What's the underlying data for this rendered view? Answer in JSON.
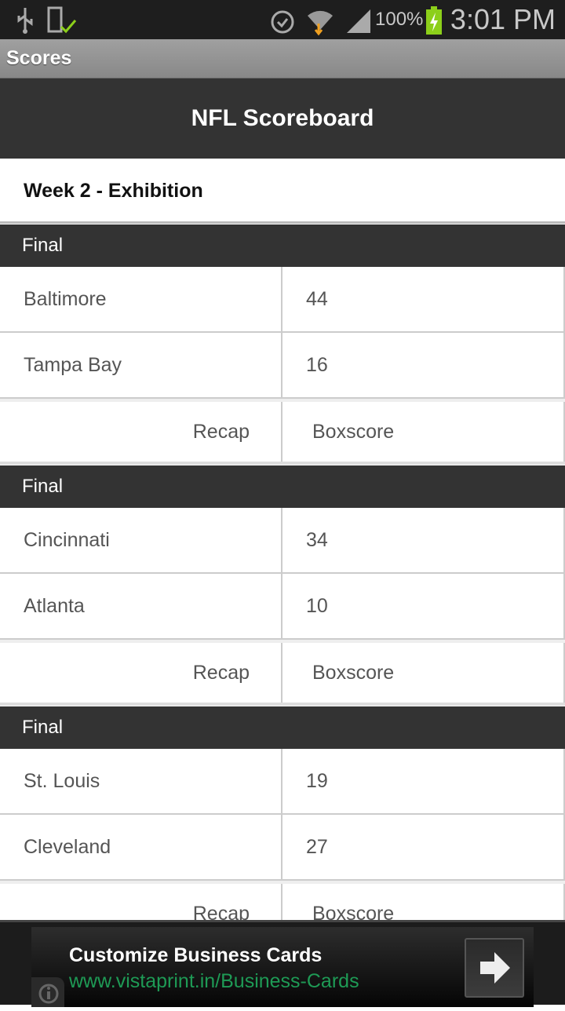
{
  "status_bar": {
    "battery": "100%",
    "time": "3:01 PM",
    "icons": [
      "usb-icon",
      "device-check-icon",
      "alarm-icon",
      "wifi-icon",
      "signal-icon",
      "battery-charging-icon"
    ],
    "battery_color": "#8ccf1a"
  },
  "app_bar": {
    "title": "Scores"
  },
  "header": {
    "title": "NFL Scoreboard"
  },
  "week": "Week 2 - Exhibition",
  "games": [
    {
      "status": "Final",
      "teams": [
        {
          "name": "Baltimore",
          "score": "44"
        },
        {
          "name": "Tampa Bay",
          "score": "16"
        }
      ],
      "recap": "Recap",
      "boxscore": "Boxscore"
    },
    {
      "status": "Final",
      "teams": [
        {
          "name": "Cincinnati",
          "score": "34"
        },
        {
          "name": "Atlanta",
          "score": "10"
        }
      ],
      "recap": "Recap",
      "boxscore": "Boxscore"
    },
    {
      "status": "Final",
      "teams": [
        {
          "name": "St. Louis",
          "score": "19"
        },
        {
          "name": "Cleveland",
          "score": "27"
        }
      ],
      "recap": "Recap",
      "boxscore": "Boxscore"
    }
  ],
  "ad": {
    "title": "Customize Business Cards",
    "url": "www.vistaprint.in/Business-Cards",
    "url_color": "#1e9a55"
  }
}
